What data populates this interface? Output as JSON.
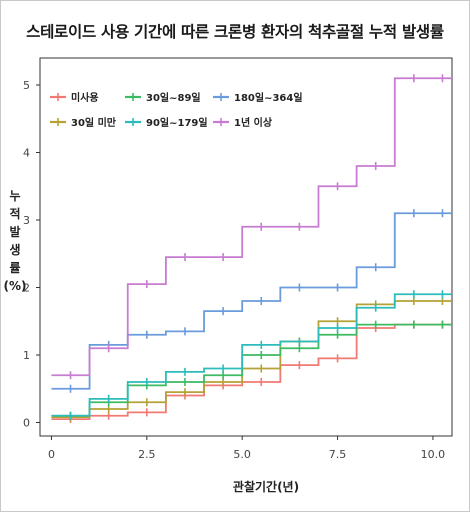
{
  "chart_data": {
    "type": "line",
    "title": "스테로이드 사용 기간에 따른 크론병 환자의 척추골절 누적 발생률",
    "xlabel": "관찰기간(년)",
    "ylabel": [
      "누",
      "적",
      "발",
      "생",
      "률",
      "(%)"
    ],
    "xlim": [
      -0.3,
      10.5
    ],
    "ylim": [
      -0.2,
      5.4
    ],
    "x_ticks": [
      0,
      2.5,
      5.0,
      7.5,
      10.0
    ],
    "x_tick_labels": [
      "0",
      "2.5",
      "5.0",
      "7.5",
      "10.0"
    ],
    "y_ticks": [
      0,
      1,
      2,
      3,
      4,
      5
    ],
    "y_tick_labels": [
      "0",
      "1",
      "2",
      "3",
      "4",
      "5"
    ],
    "step": true,
    "legend_position": "top-left",
    "series": [
      {
        "name": "미사용",
        "color": "#f07a72",
        "x": [
          0,
          1,
          2,
          3,
          4,
          5,
          6,
          7,
          8,
          9,
          10,
          10.5
        ],
        "y": [
          0.05,
          0.1,
          0.15,
          0.4,
          0.55,
          0.6,
          0.85,
          0.95,
          1.4,
          1.45,
          1.45,
          1.45
        ]
      },
      {
        "name": "30일 미만",
        "color": "#b5a236",
        "x": [
          0,
          1,
          2,
          3,
          4,
          5,
          6,
          7,
          8,
          9,
          10,
          10.5
        ],
        "y": [
          0.08,
          0.2,
          0.3,
          0.45,
          0.6,
          0.8,
          1.2,
          1.5,
          1.75,
          1.8,
          1.8,
          1.8
        ]
      },
      {
        "name": "30일~89일",
        "color": "#3dba62",
        "x": [
          0,
          1,
          2,
          3,
          4,
          5,
          6,
          7,
          8,
          9,
          10,
          10.5
        ],
        "y": [
          0.1,
          0.3,
          0.55,
          0.6,
          0.7,
          1.0,
          1.1,
          1.3,
          1.45,
          1.45,
          1.45,
          1.45
        ]
      },
      {
        "name": "90일~179일",
        "color": "#2cbcbc",
        "x": [
          0,
          1,
          2,
          3,
          4,
          5,
          6,
          7,
          8,
          9,
          10,
          10.5
        ],
        "y": [
          0.1,
          0.35,
          0.6,
          0.75,
          0.8,
          1.15,
          1.2,
          1.4,
          1.7,
          1.9,
          1.9,
          1.9
        ]
      },
      {
        "name": "180일~364일",
        "color": "#6a9bdc",
        "x": [
          0,
          1,
          2,
          3,
          4,
          5,
          6,
          7,
          8,
          9,
          10,
          10.5
        ],
        "y": [
          0.5,
          1.15,
          1.3,
          1.35,
          1.65,
          1.8,
          2.0,
          2.0,
          2.3,
          3.1,
          3.1,
          3.1
        ]
      },
      {
        "name": "1년 이상",
        "color": "#c77cd1",
        "x": [
          0,
          1,
          2,
          3,
          4,
          5,
          6,
          7,
          8,
          9,
          10,
          10.5
        ],
        "y": [
          0.7,
          1.1,
          2.05,
          2.45,
          2.45,
          2.9,
          2.9,
          3.5,
          3.8,
          5.1,
          5.1,
          5.1
        ]
      }
    ],
    "legend_layout": [
      [
        0,
        2,
        4
      ],
      [
        1,
        3,
        5
      ]
    ]
  }
}
